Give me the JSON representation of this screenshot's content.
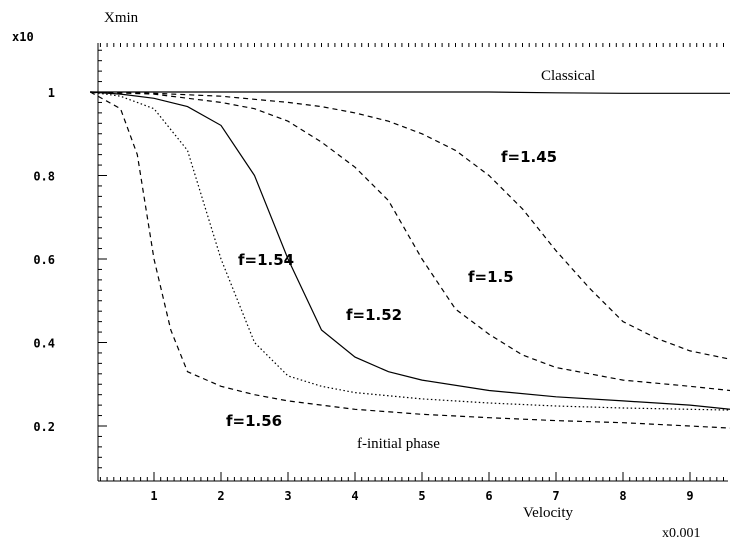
{
  "chart_data": {
    "type": "line",
    "ylabel": "Xmin",
    "xlabel": "Velocity",
    "y_multiplier": "x10",
    "x_multiplier": "x0.001",
    "xlim": [
      0.05,
      9.6
    ],
    "ylim": [
      0.07,
      1.2
    ],
    "xticks": [
      1,
      2,
      3,
      4,
      5,
      6,
      7,
      8,
      9
    ],
    "yticks": [
      0.2,
      0.4,
      0.6,
      0.8,
      1
    ],
    "ytick_labels": [
      "0.2",
      "0.4",
      "0.6",
      "0.8",
      "1"
    ],
    "series": [
      {
        "name": "Classical",
        "style": "solid",
        "x": [
          0.05,
          1,
          2,
          3,
          4,
          5,
          6,
          7,
          8,
          9,
          9.6
        ],
        "y": [
          1.0,
          1.0,
          1.0,
          1.0,
          1.0,
          1.0,
          1.0,
          0.998,
          0.997,
          0.997,
          0.997
        ]
      },
      {
        "name": "f=1.45",
        "style": "dashed",
        "x": [
          0.05,
          1,
          2,
          3,
          3.5,
          4,
          4.5,
          5,
          5.5,
          6,
          6.5,
          7,
          7.5,
          8,
          8.5,
          9,
          9.6
        ],
        "y": [
          1.0,
          0.997,
          0.99,
          0.975,
          0.965,
          0.95,
          0.93,
          0.9,
          0.86,
          0.8,
          0.72,
          0.62,
          0.53,
          0.45,
          0.41,
          0.38,
          0.36
        ]
      },
      {
        "name": "f=1.5",
        "style": "dashed",
        "x": [
          0.05,
          1,
          2,
          2.5,
          3,
          3.5,
          4,
          4.5,
          5,
          5.5,
          6,
          6.5,
          7,
          8,
          9,
          9.6
        ],
        "y": [
          1.0,
          0.995,
          0.975,
          0.96,
          0.93,
          0.88,
          0.82,
          0.74,
          0.6,
          0.48,
          0.42,
          0.37,
          0.34,
          0.31,
          0.295,
          0.285
        ]
      },
      {
        "name": "f=1.52",
        "style": "solid",
        "x": [
          0.05,
          0.5,
          1,
          1.5,
          2,
          2.5,
          3,
          3.5,
          4,
          4.5,
          5,
          6,
          7,
          8,
          9,
          9.6
        ],
        "y": [
          1.0,
          0.995,
          0.985,
          0.965,
          0.92,
          0.8,
          0.6,
          0.43,
          0.365,
          0.33,
          0.31,
          0.285,
          0.27,
          0.26,
          0.25,
          0.24
        ]
      },
      {
        "name": "f=1.54",
        "style": "dotted",
        "x": [
          0.05,
          0.5,
          1,
          1.5,
          2,
          2.5,
          3,
          3.5,
          4,
          5,
          6,
          7,
          8,
          9,
          9.6
        ],
        "y": [
          1.0,
          0.99,
          0.96,
          0.86,
          0.6,
          0.4,
          0.32,
          0.295,
          0.28,
          0.265,
          0.255,
          0.248,
          0.243,
          0.24,
          0.238
        ]
      },
      {
        "name": "f=1.56",
        "style": "dashed",
        "x": [
          0.05,
          0.5,
          0.75,
          1,
          1.25,
          1.5,
          2,
          2.5,
          3,
          4,
          5,
          6,
          7,
          8,
          9,
          9.6
        ],
        "y": [
          1.0,
          0.96,
          0.85,
          0.6,
          0.43,
          0.33,
          0.295,
          0.275,
          0.26,
          0.24,
          0.228,
          0.22,
          0.213,
          0.208,
          0.2,
          0.195
        ]
      }
    ],
    "annotations": [
      "Classical",
      "f=1.45",
      "f=1.5",
      "f=1.52",
      "f=1.54",
      "f=1.56",
      "f-initial phase"
    ]
  }
}
